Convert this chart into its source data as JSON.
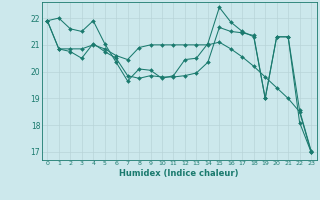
{
  "xlabel": "Humidex (Indice chaleur)",
  "xlim": [
    -0.5,
    23.5
  ],
  "ylim": [
    16.7,
    22.6
  ],
  "yticks": [
    17,
    18,
    19,
    20,
    21,
    22
  ],
  "xticks": [
    0,
    1,
    2,
    3,
    4,
    5,
    6,
    7,
    8,
    9,
    10,
    11,
    12,
    13,
    14,
    15,
    16,
    17,
    18,
    19,
    20,
    21,
    22,
    23
  ],
  "bg_color": "#cce8ec",
  "line_color": "#1a7a6e",
  "grid_major_color": "#b8d4d8",
  "grid_minor_color": "#d0e8ec",
  "series": [
    [
      21.9,
      22.0,
      21.6,
      21.5,
      21.9,
      21.05,
      20.35,
      19.65,
      20.1,
      20.05,
      19.75,
      19.85,
      20.45,
      20.5,
      21.05,
      22.4,
      21.85,
      21.5,
      21.3,
      19.0,
      21.3,
      21.3,
      18.1,
      17.0
    ],
    [
      21.9,
      20.85,
      20.75,
      20.5,
      21.05,
      20.75,
      20.5,
      19.85,
      19.75,
      19.85,
      19.8,
      19.8,
      19.85,
      19.95,
      20.35,
      21.65,
      21.5,
      21.45,
      21.35,
      19.0,
      21.3,
      21.3,
      18.55,
      17.05
    ],
    [
      21.9,
      20.85,
      20.85,
      20.85,
      21.0,
      20.85,
      20.6,
      20.45,
      20.9,
      21.0,
      21.0,
      21.0,
      21.0,
      21.0,
      21.0,
      21.1,
      20.85,
      20.55,
      20.2,
      19.8,
      19.4,
      19.0,
      18.5,
      17.0
    ]
  ]
}
